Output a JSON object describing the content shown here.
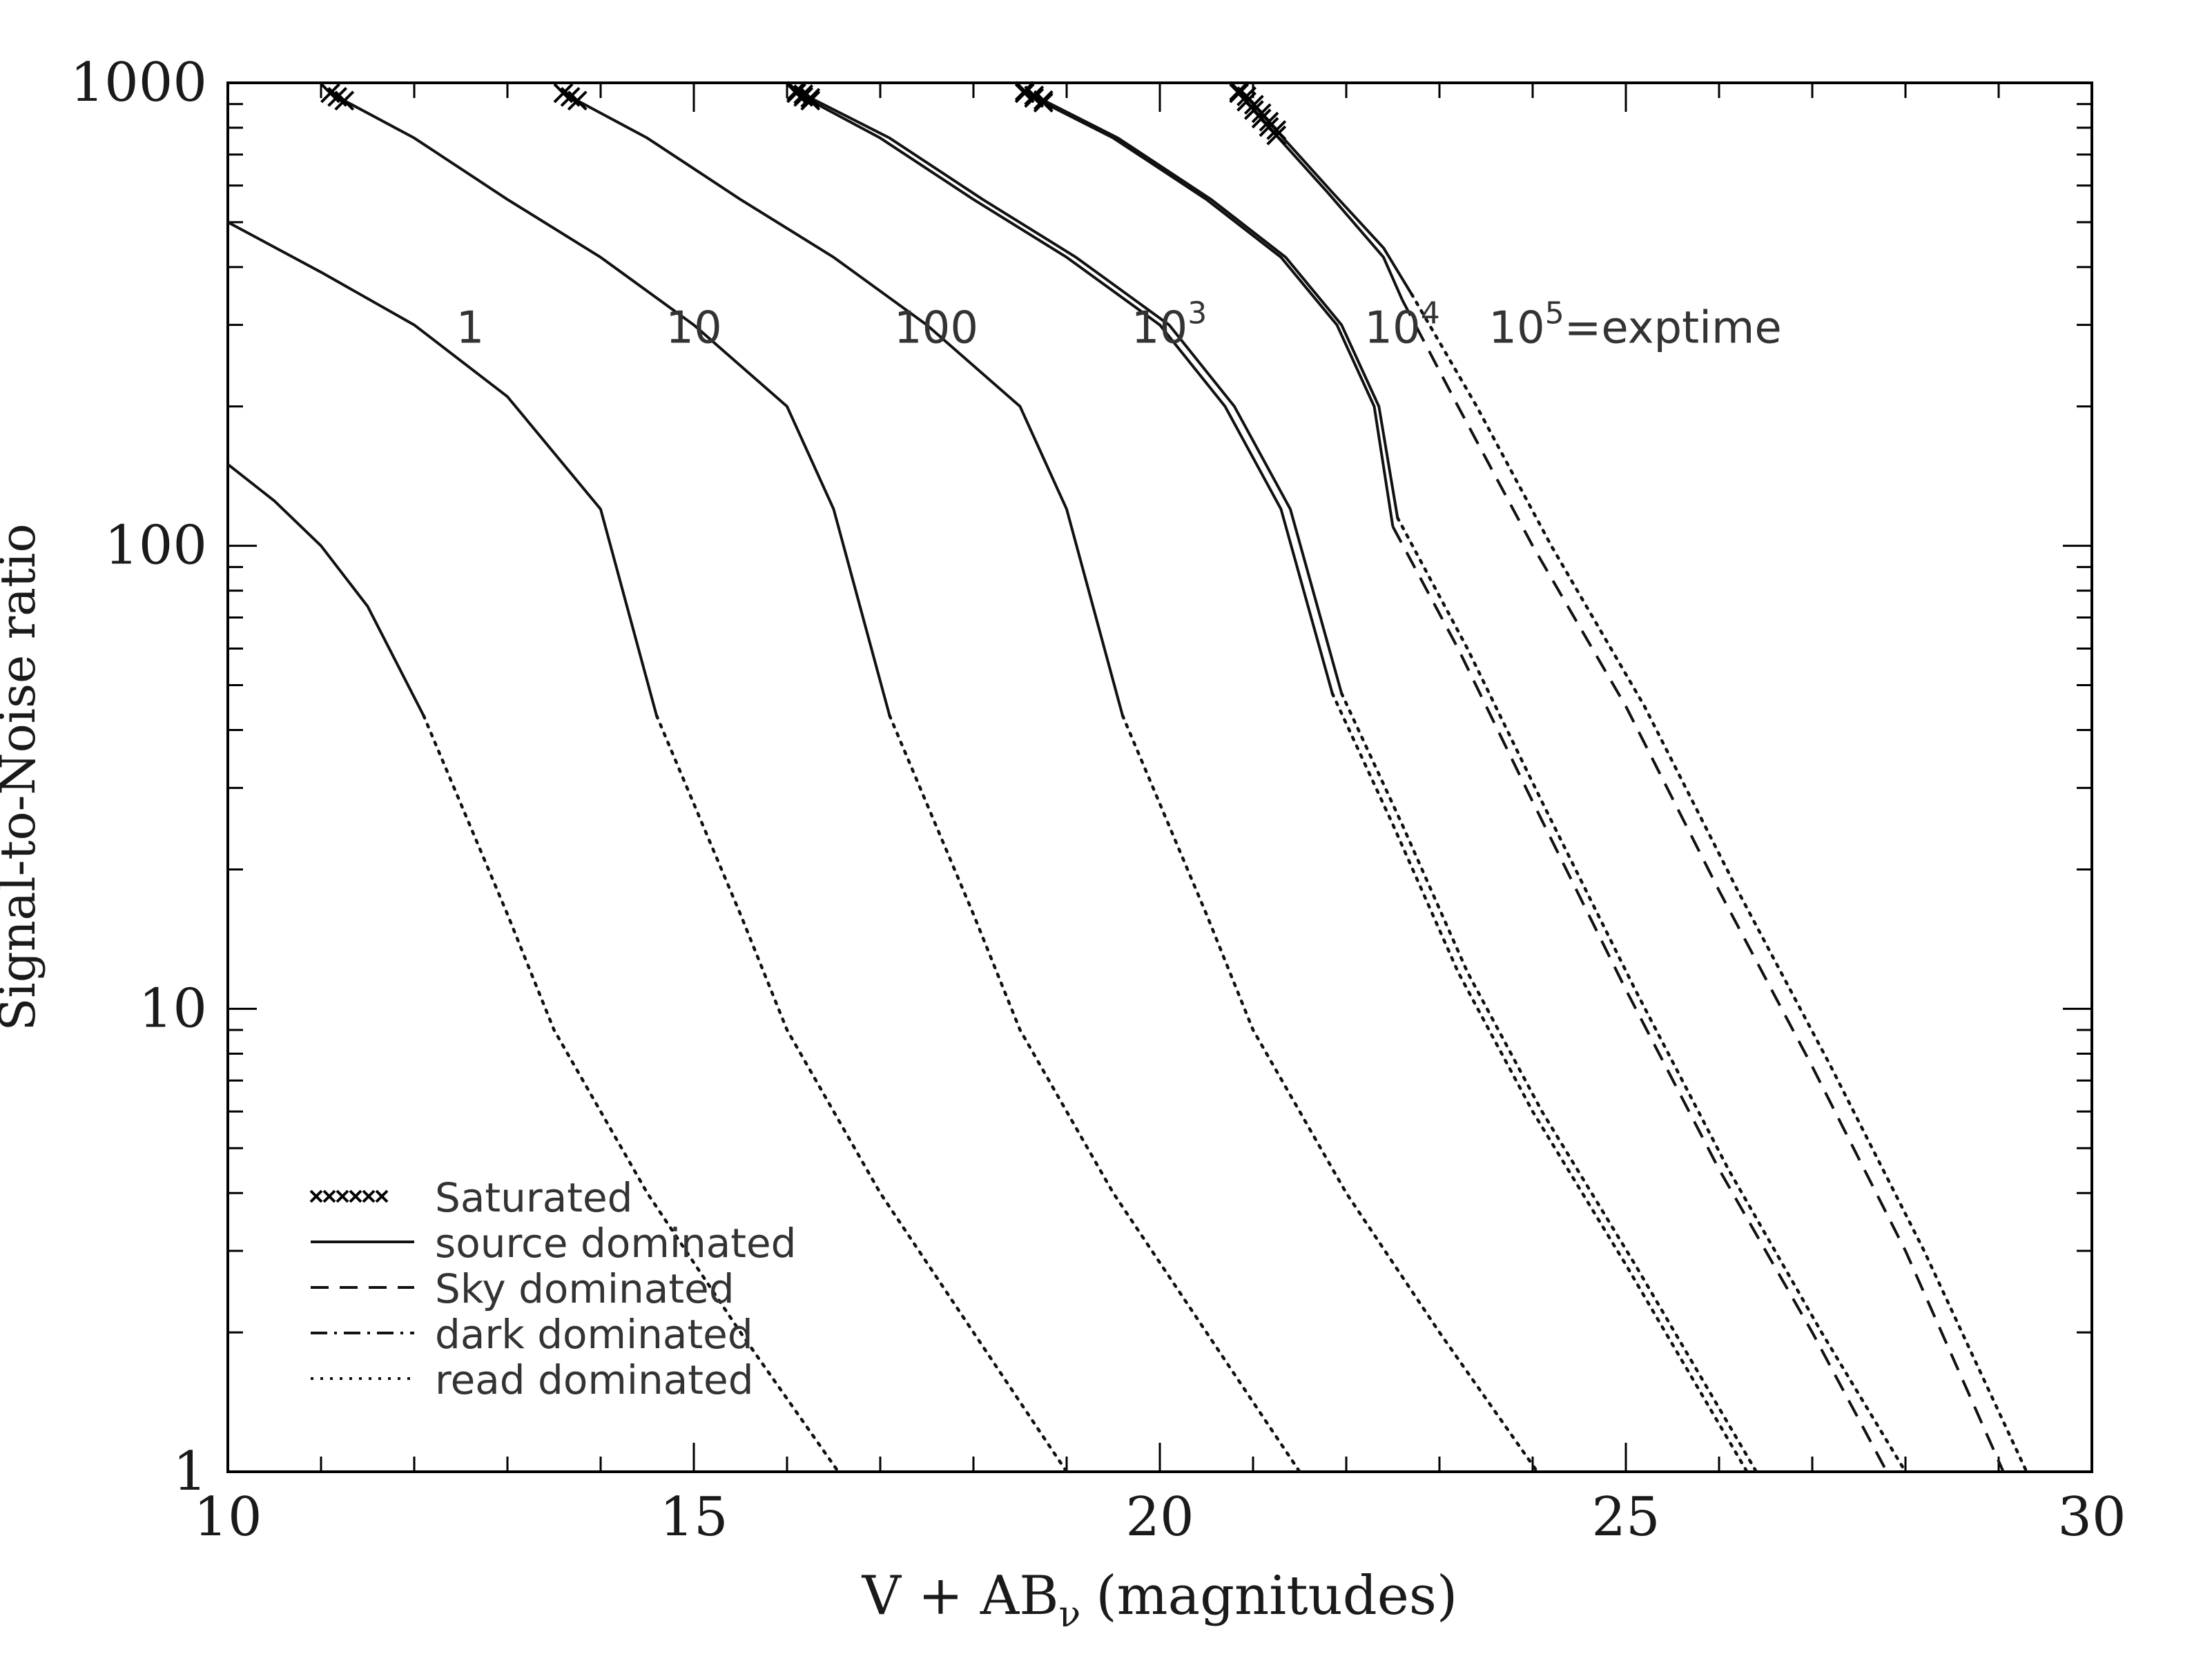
{
  "chart_data": {
    "type": "line",
    "title": "",
    "xlabel": "V + AB",
    "xlabel_sub": "ν",
    "xlabel_units": "(magnitudes)",
    "ylabel": "Signal-to-Noise ratio",
    "xlim": [
      10,
      30
    ],
    "ylim": [
      1,
      1000
    ],
    "yscale": "log",
    "grid": false,
    "x_ticks": [
      10,
      15,
      20,
      25,
      30
    ],
    "x_tick_labels": [
      "10",
      "15",
      "20",
      "25",
      "30"
    ],
    "y_ticks": [
      1,
      10,
      100,
      1000
    ],
    "y_tick_labels": [
      "1",
      "10",
      "100",
      "1000"
    ],
    "legend_placement": "bottom-left",
    "legend": [
      {
        "label": "Saturated",
        "style": "saturated"
      },
      {
        "label": "source dominated",
        "style": "solid"
      },
      {
        "label": "Sky dominated",
        "style": "dashed"
      },
      {
        "label": "dark dominated",
        "style": "dashdot"
      },
      {
        "label": "read dominated",
        "style": "dotted"
      }
    ],
    "exptime_labels": [
      {
        "base": "1",
        "exp": "",
        "suffix": "",
        "x": 12.6,
        "y": 300
      },
      {
        "base": "10",
        "exp": "",
        "suffix": "",
        "x": 15.0,
        "y": 300
      },
      {
        "base": "100",
        "exp": "",
        "suffix": "",
        "x": 17.6,
        "y": 300
      },
      {
        "base": "10",
        "exp": "3",
        "suffix": "",
        "x": 20.1,
        "y": 300
      },
      {
        "base": "10",
        "exp": "4",
        "suffix": "",
        "x": 22.6,
        "y": 300
      },
      {
        "base": "10",
        "exp": "5",
        "suffix": "=exptime",
        "x": 25.1,
        "y": 300
      }
    ],
    "series": [
      {
        "curve": "t1-low",
        "segments": [
          {
            "style": "solid",
            "points": [
              [
                10.0,
                150
              ],
              [
                10.5,
                125
              ],
              [
                11.0,
                100
              ],
              [
                11.5,
                74
              ],
              [
                12.1,
                43
              ]
            ]
          },
          {
            "style": "dotted",
            "points": [
              [
                12.1,
                43
              ],
              [
                13.0,
                16
              ],
              [
                13.5,
                9
              ],
              [
                14.5,
                4
              ],
              [
                15.5,
                2
              ],
              [
                16.55,
                1
              ]
            ]
          }
        ]
      },
      {
        "curve": "t1",
        "segments": [
          {
            "style": "solid",
            "points": [
              [
                10.0,
                500
              ],
              [
                11.0,
                390
              ],
              [
                12.0,
                300
              ],
              [
                13.0,
                210
              ],
              [
                14.0,
                120
              ],
              [
                14.6,
                43
              ]
            ]
          },
          {
            "style": "dotted",
            "points": [
              [
                14.6,
                43
              ],
              [
                15.5,
                16
              ],
              [
                16.0,
                9
              ],
              [
                17.0,
                4
              ],
              [
                18.0,
                2
              ],
              [
                19.0,
                1
              ]
            ]
          }
        ]
      },
      {
        "curve": "t10",
        "saturated": [
          11.1,
          11.25
        ],
        "segments": [
          {
            "style": "solid",
            "points": [
              [
                11.1,
                950
              ],
              [
                12.0,
                760
              ],
              [
                13.0,
                560
              ],
              [
                14.0,
                420
              ],
              [
                15.0,
                300
              ],
              [
                16.0,
                200
              ],
              [
                16.5,
                120
              ],
              [
                17.1,
                43
              ]
            ]
          },
          {
            "style": "dotted",
            "points": [
              [
                17.1,
                43
              ],
              [
                18.0,
                16
              ],
              [
                18.5,
                9
              ],
              [
                19.5,
                4
              ],
              [
                20.5,
                2
              ],
              [
                21.5,
                1
              ]
            ]
          }
        ]
      },
      {
        "curve": "t100",
        "saturated": [
          13.6,
          13.75
        ],
        "segments": [
          {
            "style": "solid",
            "points": [
              [
                13.6,
                950
              ],
              [
                14.5,
                760
              ],
              [
                15.5,
                560
              ],
              [
                16.5,
                420
              ],
              [
                17.5,
                300
              ],
              [
                18.5,
                200
              ],
              [
                19.0,
                120
              ],
              [
                19.6,
                43
              ]
            ]
          },
          {
            "style": "dotted",
            "points": [
              [
                19.6,
                43
              ],
              [
                20.5,
                16
              ],
              [
                21.0,
                9
              ],
              [
                22.0,
                4
              ],
              [
                23.0,
                2
              ],
              [
                24.05,
                1
              ]
            ]
          }
        ]
      },
      {
        "curve": "t1000-a",
        "saturated": [
          16.1,
          16.25
        ],
        "segments": [
          {
            "style": "solid",
            "points": [
              [
                16.1,
                950
              ],
              [
                17.0,
                760
              ],
              [
                18.0,
                560
              ],
              [
                19.0,
                420
              ],
              [
                20.0,
                300
              ],
              [
                20.7,
                200
              ],
              [
                21.3,
                120
              ],
              [
                21.85,
                48
              ]
            ]
          },
          {
            "style": "dotted",
            "points": [
              [
                21.85,
                48
              ],
              [
                22.5,
                25
              ],
              [
                23.2,
                12
              ],
              [
                24.0,
                6
              ],
              [
                25.0,
                2.8
              ],
              [
                26.3,
                1
              ]
            ]
          }
        ]
      },
      {
        "curve": "t1000-b",
        "saturated": [
          16.1,
          16.25
        ],
        "segments": [
          {
            "style": "solid",
            "points": [
              [
                16.15,
                950
              ],
              [
                17.1,
                760
              ],
              [
                18.1,
                560
              ],
              [
                19.1,
                420
              ],
              [
                20.1,
                300
              ],
              [
                20.8,
                200
              ],
              [
                21.4,
                120
              ],
              [
                21.95,
                48
              ]
            ]
          },
          {
            "style": "dotted",
            "points": [
              [
                21.95,
                48
              ],
              [
                22.6,
                25
              ],
              [
                23.3,
                12
              ],
              [
                24.1,
                6
              ],
              [
                25.1,
                2.8
              ],
              [
                26.4,
                1
              ]
            ]
          }
        ]
      },
      {
        "curve": "t10000-a",
        "saturated": [
          18.55,
          18.75
        ],
        "segments": [
          {
            "style": "solid",
            "points": [
              [
                18.55,
                950
              ],
              [
                19.5,
                760
              ],
              [
                20.5,
                560
              ],
              [
                21.3,
                420
              ],
              [
                21.9,
                300
              ],
              [
                22.3,
                200
              ],
              [
                22.5,
                110
              ]
            ]
          },
          {
            "style": "dashed",
            "points": [
              [
                22.5,
                110
              ],
              [
                23.2,
                60
              ],
              [
                24.0,
                28
              ],
              [
                25.0,
                11
              ],
              [
                26.0,
                4.5
              ],
              [
                27.0,
                2
              ],
              [
                27.8,
                1
              ]
            ]
          }
        ]
      },
      {
        "curve": "t10000-b",
        "saturated": [
          18.55,
          18.75
        ],
        "segments": [
          {
            "style": "solid",
            "points": [
              [
                18.6,
                950
              ],
              [
                19.55,
                760
              ],
              [
                20.55,
                560
              ],
              [
                21.35,
                420
              ],
              [
                21.95,
                300
              ],
              [
                22.35,
                200
              ],
              [
                22.55,
                115
              ]
            ]
          },
          {
            "style": "dotted",
            "points": [
              [
                22.55,
                115
              ],
              [
                23.3,
                60
              ],
              [
                24.1,
                28
              ],
              [
                25.1,
                11
              ],
              [
                26.1,
                4.5
              ],
              [
                27.1,
                2
              ],
              [
                28.0,
                1
              ]
            ]
          }
        ]
      },
      {
        "curve": "t100000-a",
        "saturated": [
          20.85,
          21.25
        ],
        "segments": [
          {
            "style": "solid",
            "points": [
              [
                20.85,
                950
              ],
              [
                21.3,
                750
              ],
              [
                21.8,
                580
              ],
              [
                22.4,
                420
              ],
              [
                22.6,
                340
              ]
            ]
          },
          {
            "style": "dashed",
            "points": [
              [
                22.6,
                340
              ],
              [
                23.2,
                200
              ],
              [
                24.0,
                100
              ],
              [
                25.0,
                45
              ],
              [
                26.0,
                18
              ],
              [
                27.0,
                7.5
              ],
              [
                28.0,
                3
              ],
              [
                29.05,
                1
              ]
            ]
          }
        ]
      },
      {
        "curve": "t100000-b",
        "saturated": [
          20.85,
          21.25
        ],
        "segments": [
          {
            "style": "solid",
            "points": [
              [
                20.9,
                950
              ],
              [
                21.35,
                750
              ],
              [
                21.85,
                580
              ],
              [
                22.4,
                440
              ],
              [
                22.7,
                350
              ]
            ]
          },
          {
            "style": "dotted",
            "points": [
              [
                22.7,
                350
              ],
              [
                23.4,
                200
              ],
              [
                24.2,
                100
              ],
              [
                25.2,
                45
              ],
              [
                26.2,
                18
              ],
              [
                27.2,
                7.5
              ],
              [
                28.2,
                3
              ],
              [
                29.3,
                1
              ]
            ]
          }
        ]
      }
    ]
  }
}
